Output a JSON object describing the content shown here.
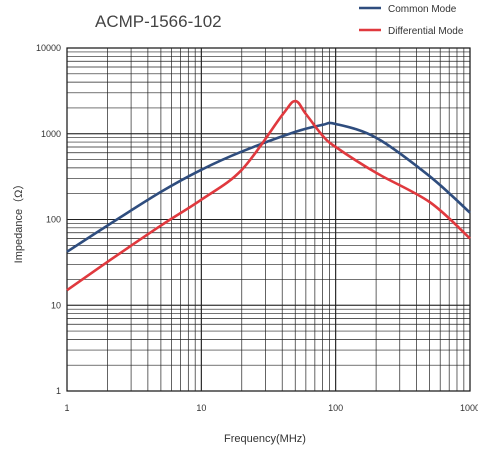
{
  "chart_data": {
    "type": "line",
    "title": "ACMP-1566-102",
    "xlabel": "Frequency(MHz)",
    "ylabel": "Impedance（Ω）",
    "x_scale": "log",
    "y_scale": "log",
    "xlim": [
      1,
      1000
    ],
    "ylim": [
      1,
      10000
    ],
    "x_ticks": [
      "1",
      "10",
      "100",
      "1000"
    ],
    "y_ticks": [
      "1",
      "10",
      "100",
      "1000",
      "10000"
    ],
    "grid": true,
    "legend_position": "top-right",
    "series": [
      {
        "name": "Common Mode",
        "color": "#2f4d7e",
        "x": [
          1,
          2,
          5,
          10,
          20,
          50,
          80,
          100,
          200,
          500,
          1000
        ],
        "y": [
          42,
          85,
          210,
          380,
          620,
          1050,
          1270,
          1300,
          900,
          320,
          120
        ]
      },
      {
        "name": "Differential Mode",
        "color": "#e0393e",
        "x": [
          1,
          2,
          5,
          10,
          20,
          40,
          50,
          60,
          80,
          100,
          200,
          500,
          1000
        ],
        "y": [
          15,
          32,
          85,
          170,
          380,
          1650,
          2400,
          1700,
          950,
          700,
          350,
          160,
          60
        ]
      }
    ]
  }
}
